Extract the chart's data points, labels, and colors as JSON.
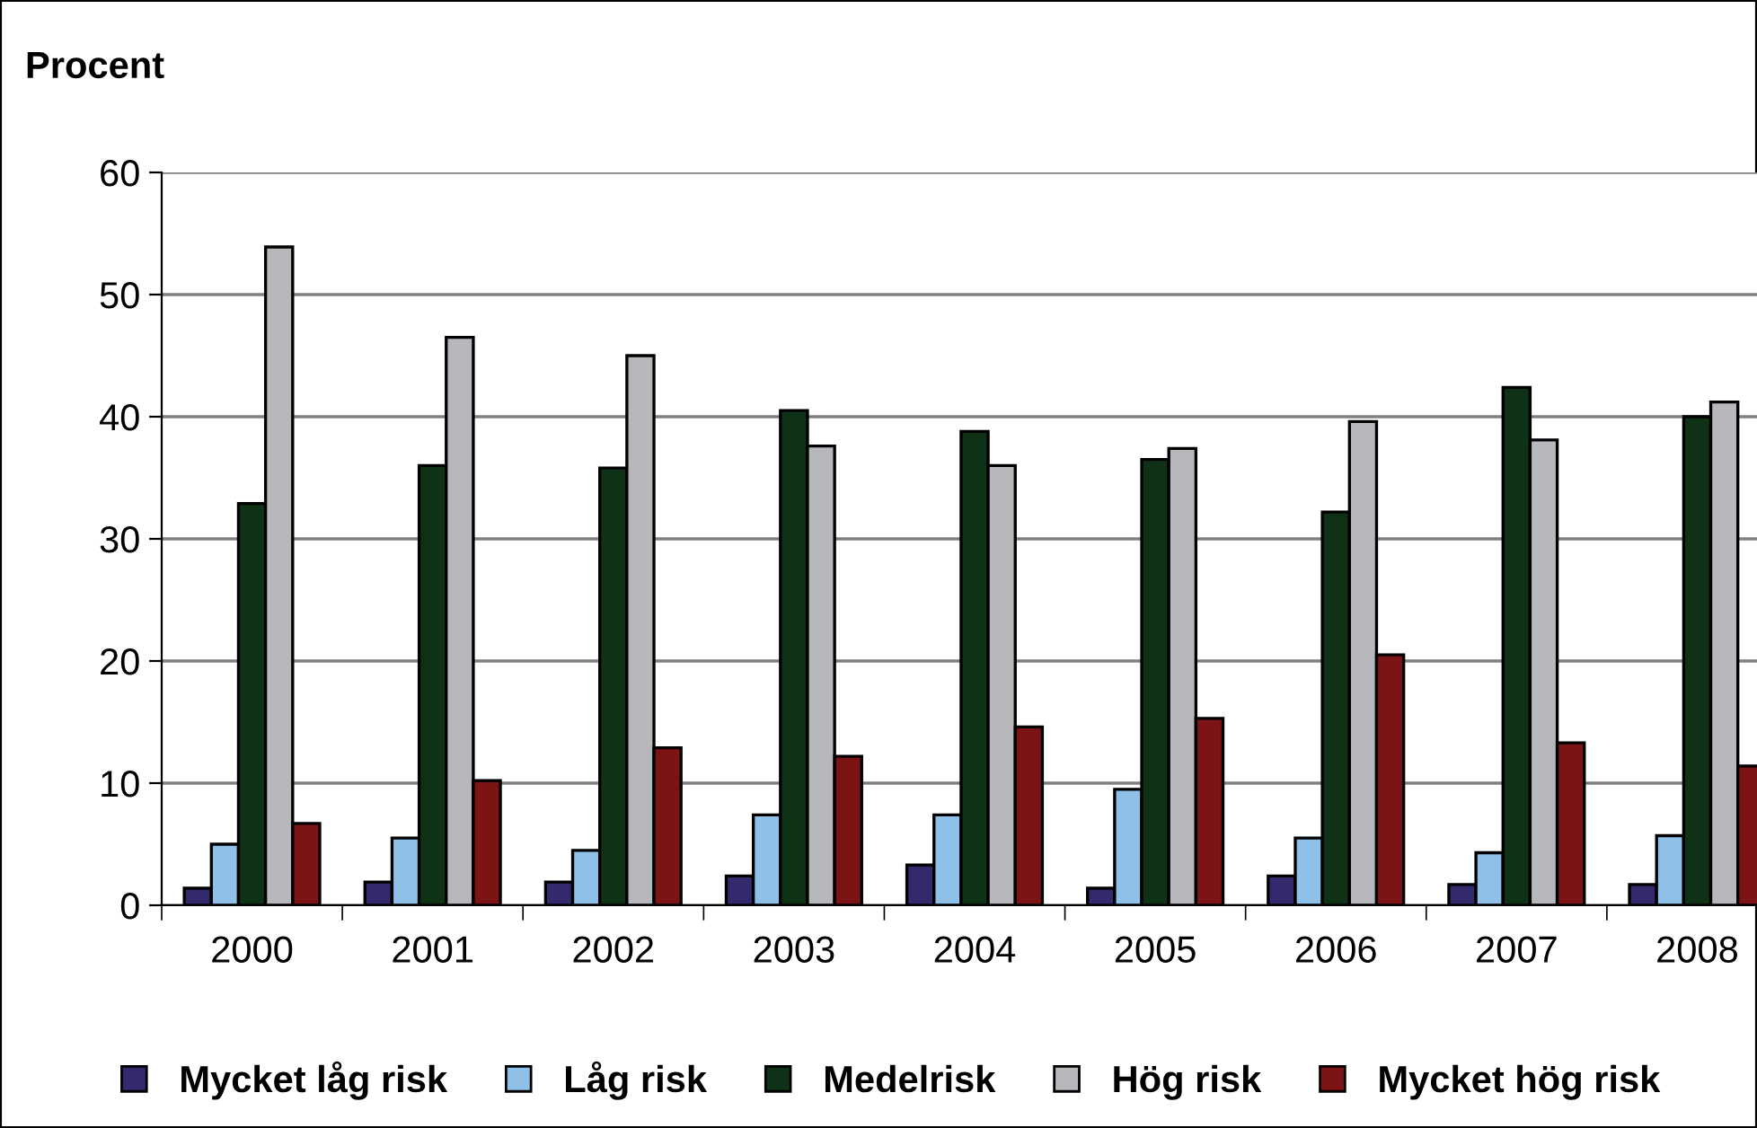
{
  "chart_data": {
    "type": "bar",
    "ylabel": "Procent",
    "categories": [
      "2000",
      "2001",
      "2002",
      "2003",
      "2004",
      "2005",
      "2006",
      "2007",
      "2008"
    ],
    "series": [
      {
        "name": "Mycket låg risk",
        "color": "#332a6e",
        "values": [
          1.4,
          1.9,
          1.9,
          2.4,
          3.3,
          1.4,
          2.4,
          1.7,
          1.7
        ]
      },
      {
        "name": "Låg risk",
        "color": "#8fc0e8",
        "values": [
          5.0,
          5.5,
          4.5,
          7.4,
          7.4,
          9.5,
          5.5,
          4.3,
          5.7
        ]
      },
      {
        "name": "Medelrisk",
        "color": "#0f3216",
        "values": [
          32.9,
          36.0,
          35.8,
          40.5,
          38.8,
          36.5,
          32.2,
          42.4,
          40.0
        ]
      },
      {
        "name": "Hög risk",
        "color": "#b7b8bc",
        "values": [
          53.9,
          46.5,
          45.0,
          37.6,
          36.0,
          37.4,
          39.6,
          38.1,
          41.2
        ]
      },
      {
        "name": "Mycket hög risk",
        "color": "#7c1416",
        "values": [
          6.7,
          10.2,
          12.9,
          12.2,
          14.6,
          15.3,
          20.5,
          13.3,
          11.4
        ]
      }
    ],
    "ylim": [
      0,
      60
    ],
    "yticks": [
      0,
      10,
      20,
      30,
      40,
      50,
      60
    ],
    "grid": "y",
    "legend": "bottom"
  }
}
